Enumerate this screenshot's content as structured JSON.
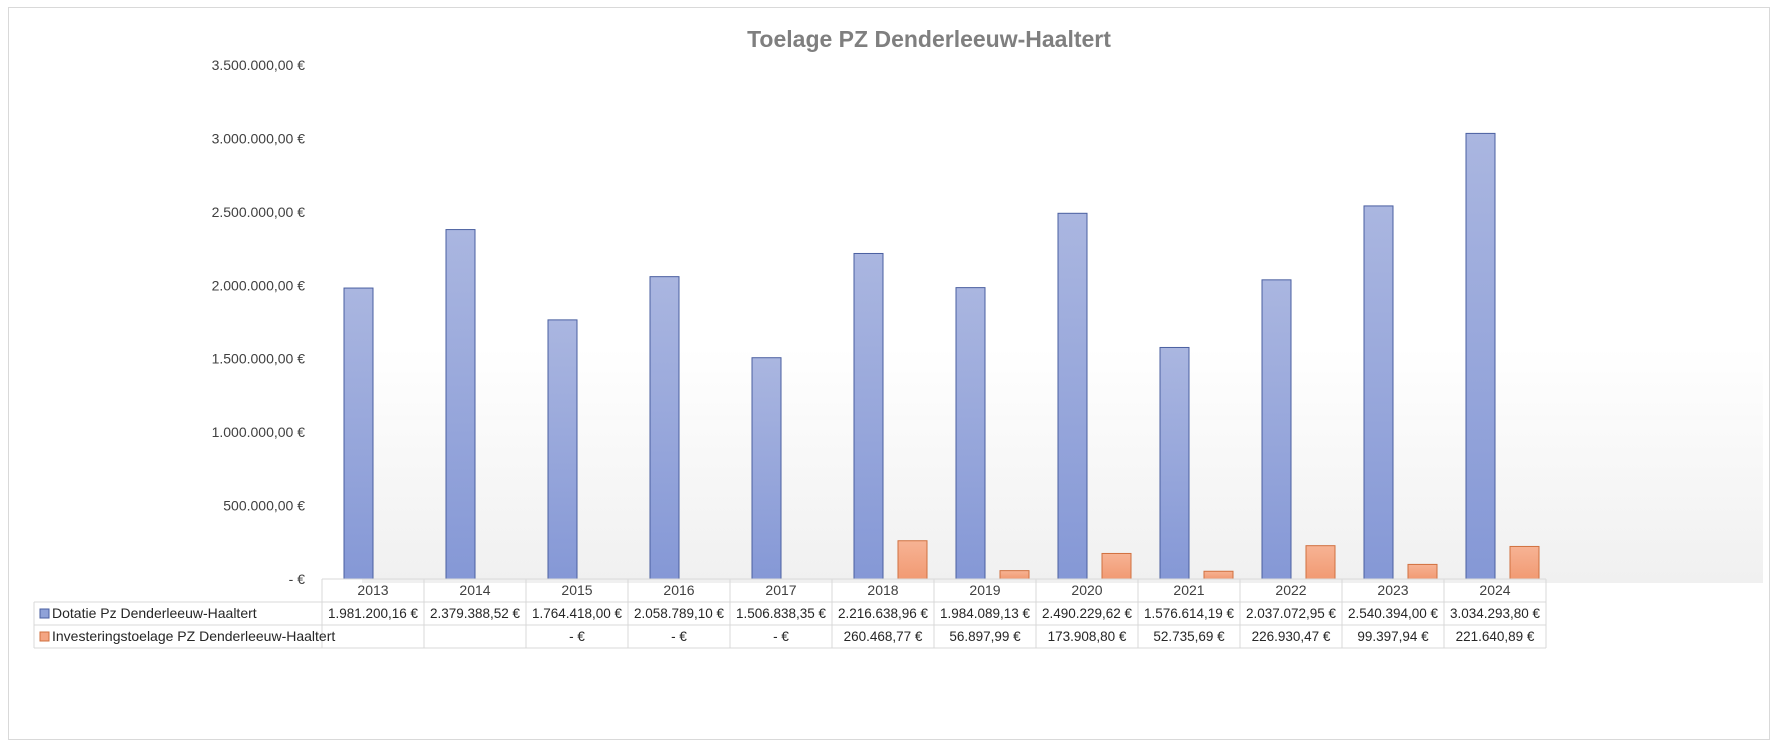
{
  "chart_data": {
    "type": "bar",
    "title": "Toelage PZ Denderleeuw-Haaltert",
    "xlabel": "",
    "ylabel": "",
    "ylim": [
      0,
      3500000
    ],
    "y_ticks": [
      {
        "value": 0,
        "label": " -  €"
      },
      {
        "value": 500000,
        "label": "500.000,00 €"
      },
      {
        "value": 1000000,
        "label": "1.000.000,00 €"
      },
      {
        "value": 1500000,
        "label": "1.500.000,00 €"
      },
      {
        "value": 2000000,
        "label": "2.000.000,00 €"
      },
      {
        "value": 2500000,
        "label": "2.500.000,00 €"
      },
      {
        "value": 3000000,
        "label": "3.000.000,00 €"
      },
      {
        "value": 3500000,
        "label": "3.500.000,00 €"
      }
    ],
    "grid": false,
    "legend": "data-table",
    "categories": [
      "2013",
      "2014",
      "2015",
      "2016",
      "2017",
      "2018",
      "2019",
      "2020",
      "2021",
      "2022",
      "2023",
      "2024"
    ],
    "series": [
      {
        "name": "Dotatie Pz Denderleeuw-Haaltert",
        "color": "#8fa2d8",
        "values": [
          1981200.16,
          2379388.52,
          1764418.0,
          2058789.1,
          1506838.35,
          2216638.96,
          1984089.13,
          2490229.62,
          1576614.19,
          2037072.95,
          2540394.0,
          3034293.8
        ],
        "labels": [
          "1.981.200,16 €",
          "2.379.388,52 €",
          "1.764.418,00 €",
          "2.058.789,10 €",
          "1.506.838,35 €",
          "2.216.638,96 €",
          "1.984.089,13 €",
          "2.490.229,62 €",
          "1.576.614,19 €",
          "2.037.072,95 €",
          "2.540.394,00 €",
          "3.034.293,80 €"
        ]
      },
      {
        "name": "Investeringstoelage PZ Denderleeuw-Haaltert",
        "color": "#f4a582",
        "values": [
          null,
          null,
          0,
          0,
          0,
          260468.77,
          56897.99,
          173908.8,
          52735.69,
          226930.47,
          99397.94,
          221640.89
        ],
        "labels": [
          "",
          "",
          " -  €",
          " -  €",
          " -  €",
          "260.468,77 €",
          "56.897,99 €",
          "173.908,80 €",
          "52.735,69 €",
          "226.930,47 €",
          "99.397,94 €",
          "221.640,89 €"
        ]
      }
    ]
  }
}
